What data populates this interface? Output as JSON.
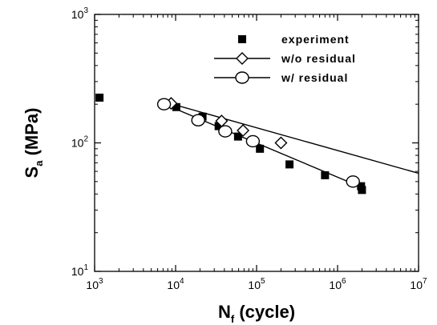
{
  "chart_data": {
    "type": "scatter",
    "x_scale": "log",
    "y_scale": "log",
    "xlim": [
      1000,
      10000000
    ],
    "ylim": [
      10,
      1000
    ],
    "grid": false,
    "legend_position": "top-right",
    "xlabel": {
      "main": "N",
      "sub": "f",
      "rest": " (cycle)"
    },
    "ylabel": {
      "main": "S",
      "sub": "a",
      "rest": " (MPa)"
    },
    "x_ticks": [
      {
        "value": 1000,
        "base": "10",
        "exp": "3"
      },
      {
        "value": 10000,
        "base": "10",
        "exp": "4"
      },
      {
        "value": 100000,
        "base": "10",
        "exp": "5"
      },
      {
        "value": 1000000,
        "base": "10",
        "exp": "6"
      },
      {
        "value": 10000000,
        "base": "10",
        "exp": "7"
      }
    ],
    "y_ticks": [
      {
        "value": 10,
        "base": "10",
        "exp": "1"
      },
      {
        "value": 100,
        "base": "10",
        "exp": "2"
      },
      {
        "value": 1000,
        "base": "10",
        "exp": "3"
      }
    ],
    "series": [
      {
        "name": "experiment",
        "marker": "filled-square",
        "line": false,
        "points": [
          [
            1150,
            225
          ],
          [
            6900,
            202
          ],
          [
            10200,
            190
          ],
          [
            21500,
            160
          ],
          [
            34000,
            135
          ],
          [
            59000,
            112
          ],
          [
            110000,
            90
          ],
          [
            255000,
            68
          ],
          [
            700000,
            56
          ],
          [
            1950000,
            46
          ],
          [
            2000000,
            43
          ]
        ]
      },
      {
        "name": "w/o residual",
        "marker": "open-diamond",
        "line": true,
        "points": [
          [
            8800,
            203
          ],
          [
            37000,
            148
          ],
          [
            68000,
            125
          ],
          [
            200000,
            100
          ]
        ],
        "line_points": [
          [
            7000,
            210
          ],
          [
            10000000,
            58
          ]
        ]
      },
      {
        "name": "w/ residual",
        "marker": "open-circle",
        "line": true,
        "points": [
          [
            7200,
            200
          ],
          [
            19000,
            150
          ],
          [
            41000,
            123
          ],
          [
            90000,
            103
          ],
          [
            1550000,
            50
          ]
        ],
        "line_points": [
          [
            7000,
            202
          ],
          [
            2000000,
            45
          ]
        ]
      }
    ]
  }
}
